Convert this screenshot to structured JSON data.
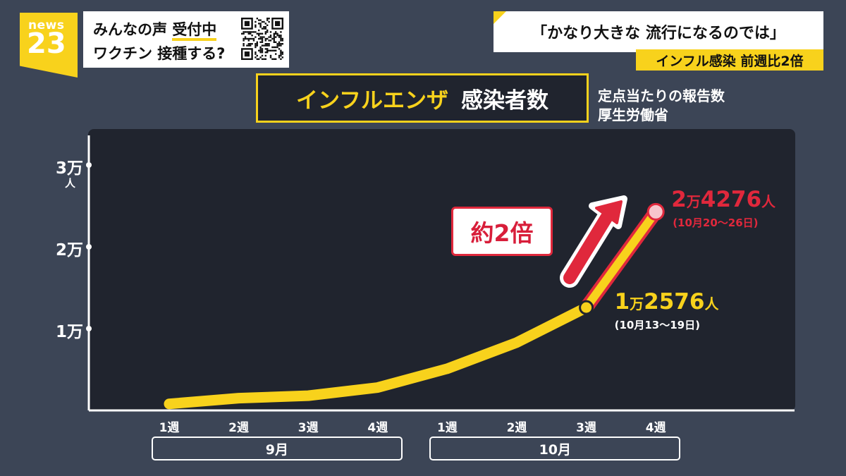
{
  "logo": {
    "text_top": "news",
    "text_bottom": "23"
  },
  "voice_box": {
    "line1_prefix": "みんなの声 ",
    "line1_highlight": "受付中",
    "line2": "ワクチン 接種する?"
  },
  "headline": "「かなり大きな 流行になるのでは」",
  "subheadline": "インフル感染 前週比2倍",
  "title_main": "インフルエンザ",
  "title_sub": "感染者数",
  "source_line1": "定点当たりの報告数",
  "source_line2": "厚生労働省",
  "badge": "約2倍",
  "colors": {
    "accent_yellow": "#f8d21c",
    "highlight_red": "#e0283c",
    "panel": "#20242e",
    "background": "#3c4556"
  },
  "chart_data": {
    "type": "line",
    "ylim": [
      0,
      35000
    ],
    "y_ticks": [
      {
        "value": 10000,
        "label": "1万"
      },
      {
        "value": 20000,
        "label": "2万"
      },
      {
        "value": 30000,
        "label": "3万"
      }
    ],
    "y_unit": "人",
    "categories": [
      "1週",
      "2週",
      "3週",
      "4週",
      "1週",
      "2週",
      "3週",
      "4週"
    ],
    "groups": [
      {
        "label": "9月",
        "from": 0,
        "to": 3
      },
      {
        "label": "10月",
        "from": 4,
        "to": 7
      }
    ],
    "values": [
      800,
      1500,
      1800,
      2800,
      5100,
      8300,
      12576,
      24276
    ],
    "annotations": [
      {
        "index": 6,
        "man": "1",
        "man_unit": "万",
        "rest": "2576",
        "unit": "人",
        "date": "(10月13〜19日)"
      },
      {
        "index": 7,
        "man": "2",
        "man_unit": "万",
        "rest": "4276",
        "unit": "人",
        "date": "(10月20〜26日)"
      }
    ]
  }
}
